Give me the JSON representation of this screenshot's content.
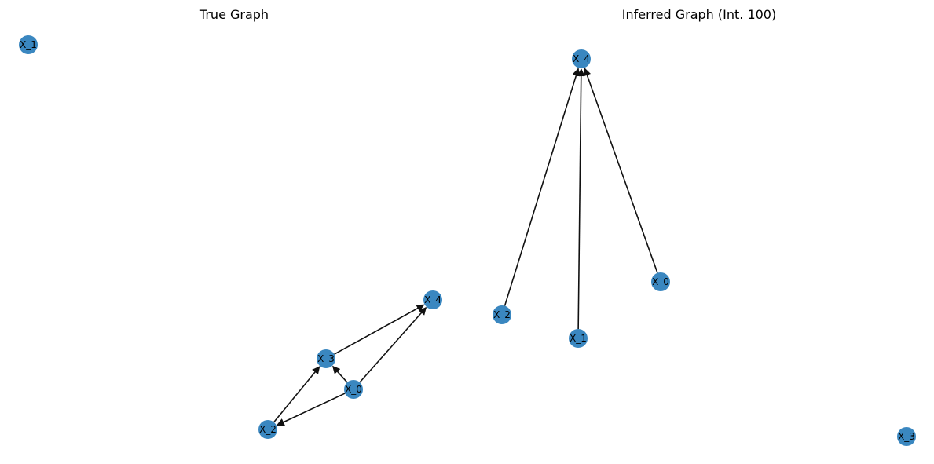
{
  "colors": {
    "node": "#3a87c0",
    "edge": "#111111",
    "label": "#000000",
    "title": "#000000"
  },
  "panels": [
    {
      "id": "true",
      "title": "True Graph",
      "nodes": [
        {
          "id": "X_0",
          "label": "X_0"
        },
        {
          "id": "X_1",
          "label": "X_1"
        },
        {
          "id": "X_2",
          "label": "X_2"
        },
        {
          "id": "X_3",
          "label": "X_3"
        },
        {
          "id": "X_4",
          "label": "X_4"
        }
      ],
      "edges": [
        {
          "from": "X_0",
          "to": "X_3"
        },
        {
          "from": "X_0",
          "to": "X_4"
        },
        {
          "from": "X_0",
          "to": "X_2"
        },
        {
          "from": "X_2",
          "to": "X_3"
        },
        {
          "from": "X_3",
          "to": "X_4"
        }
      ]
    },
    {
      "id": "inferred",
      "title": "Inferred Graph (Int. 100)",
      "nodes": [
        {
          "id": "X_0",
          "label": "X_0"
        },
        {
          "id": "X_1",
          "label": "X_1"
        },
        {
          "id": "X_2",
          "label": "X_2"
        },
        {
          "id": "X_3",
          "label": "X_3"
        },
        {
          "id": "X_4",
          "label": "X_4"
        }
      ],
      "edges": [
        {
          "from": "X_2",
          "to": "X_4"
        },
        {
          "from": "X_1",
          "to": "X_4"
        },
        {
          "from": "X_0",
          "to": "X_4"
        }
      ]
    }
  ]
}
